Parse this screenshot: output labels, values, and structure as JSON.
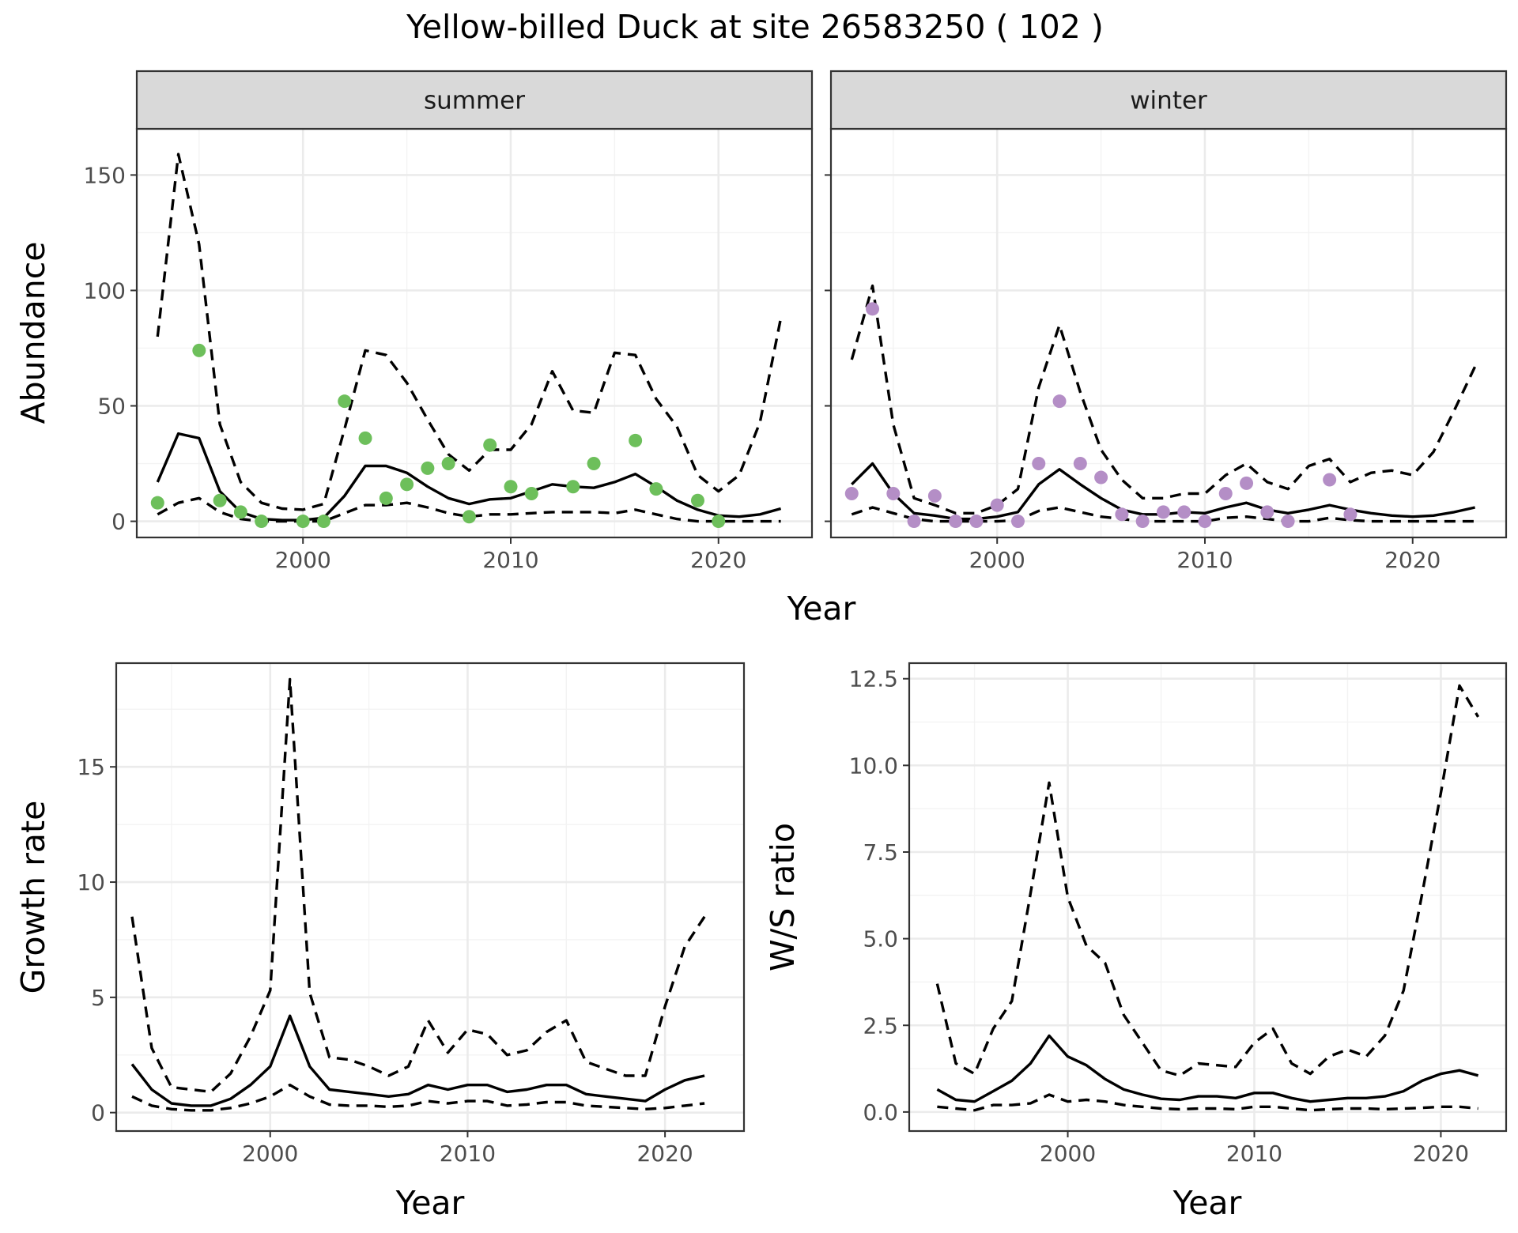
{
  "title": "Yellow-billed Duck at site 26583250 ( 102 )",
  "colors": {
    "summer_points": "#6dbf5b",
    "winter_points": "#b48ec6",
    "line": "#000000",
    "grid_major": "#ebebeb",
    "strip_fill": "#d9d9d9"
  },
  "chart_data": [
    {
      "type": "line",
      "panel": "summer",
      "strip_label": "summer",
      "xlabel": "Year",
      "ylabel": "Abundance",
      "xlim": [
        1992,
        2024.5
      ],
      "ylim": [
        -7,
        170
      ],
      "x_ticks": [
        2000,
        2010,
        2020
      ],
      "y_ticks": [
        0,
        50,
        100,
        150
      ],
      "grid": true,
      "series": [
        {
          "role": "mean",
          "style": "solid",
          "x": [
            1993,
            1994,
            1995,
            1996,
            1997,
            1998,
            1999,
            2000,
            2001,
            2002,
            2003,
            2004,
            2005,
            2006,
            2007,
            2008,
            2009,
            2010,
            2011,
            2012,
            2013,
            2014,
            2015,
            2016,
            2017,
            2018,
            2019,
            2020,
            2021,
            2022,
            2023
          ],
          "y": [
            17,
            38,
            36,
            13,
            4,
            1,
            0.5,
            0.5,
            1.5,
            11,
            24,
            24,
            21,
            15,
            10,
            7.5,
            9.5,
            10,
            13,
            16,
            15,
            14.5,
            17,
            20.5,
            15,
            9,
            5,
            2.5,
            2,
            3,
            5.5
          ]
        },
        {
          "role": "upper",
          "style": "dashed",
          "x": [
            1993,
            1994,
            1995,
            1996,
            1997,
            1998,
            1999,
            2000,
            2001,
            2002,
            2003,
            2004,
            2005,
            2006,
            2007,
            2008,
            2009,
            2010,
            2011,
            2012,
            2013,
            2014,
            2015,
            2016,
            2017,
            2018,
            2019,
            2020,
            2021,
            2022,
            2023
          ],
          "y": [
            80,
            159,
            120,
            42,
            17,
            8,
            5.5,
            5,
            7.5,
            40,
            74,
            72,
            60,
            44,
            29,
            22,
            31,
            31,
            42,
            65,
            48,
            47,
            73,
            72,
            53,
            41,
            20,
            13,
            20,
            43,
            88
          ]
        },
        {
          "role": "lower",
          "style": "dashed",
          "x": [
            1993,
            1994,
            1995,
            1996,
            1997,
            1998,
            1999,
            2000,
            2001,
            2002,
            2003,
            2004,
            2005,
            2006,
            2007,
            2008,
            2009,
            2010,
            2011,
            2012,
            2013,
            2014,
            2015,
            2016,
            2017,
            2018,
            2019,
            2020,
            2021,
            2022,
            2023
          ],
          "y": [
            3,
            8,
            10,
            4,
            1,
            0,
            0,
            0,
            0,
            3.5,
            7,
            7,
            8,
            6,
            3.5,
            2,
            3,
            3,
            3.5,
            4,
            4,
            4,
            3.5,
            5,
            3,
            1,
            0,
            0,
            0,
            0,
            0
          ]
        },
        {
          "role": "observed",
          "style": "points",
          "x": [
            1993,
            1995,
            1996,
            1997,
            1998,
            2000,
            2001,
            2002,
            2003,
            2004,
            2005,
            2006,
            2007,
            2008,
            2009,
            2010,
            2011,
            2013,
            2014,
            2016,
            2017,
            2019,
            2020
          ],
          "y": [
            8,
            74,
            9,
            4,
            0,
            0,
            0,
            52,
            36,
            10,
            16,
            23,
            25,
            2,
            33,
            15,
            12,
            15,
            25,
            35,
            14,
            9,
            0
          ]
        }
      ]
    },
    {
      "type": "line",
      "panel": "winter",
      "strip_label": "winter",
      "xlabel": "Year",
      "ylabel": "Abundance",
      "xlim": [
        1992,
        2024.5
      ],
      "ylim": [
        -7,
        170
      ],
      "x_ticks": [
        2000,
        2010,
        2020
      ],
      "y_ticks": [
        0,
        50,
        100,
        150
      ],
      "grid": true,
      "series": [
        {
          "role": "mean",
          "style": "solid",
          "x": [
            1993,
            1994,
            1995,
            1996,
            1997,
            1998,
            1999,
            2000,
            2001,
            2002,
            2003,
            2004,
            2005,
            2006,
            2007,
            2008,
            2009,
            2010,
            2011,
            2012,
            2013,
            2014,
            2015,
            2016,
            2017,
            2018,
            2019,
            2020,
            2021,
            2022,
            2023
          ],
          "y": [
            16,
            25,
            12,
            3.5,
            2.5,
            1,
            1,
            2,
            4,
            16,
            22.5,
            16,
            10,
            5,
            3,
            3,
            4,
            3.5,
            6,
            8,
            5,
            3.5,
            5,
            7,
            5,
            3.5,
            2.5,
            2,
            2.5,
            4,
            6
          ]
        },
        {
          "role": "upper",
          "style": "dashed",
          "x": [
            1993,
            1994,
            1995,
            1996,
            1997,
            1998,
            1999,
            2000,
            2001,
            2002,
            2003,
            2004,
            2005,
            2006,
            2007,
            2008,
            2009,
            2010,
            2011,
            2012,
            2013,
            2014,
            2015,
            2016,
            2017,
            2018,
            2019,
            2020,
            2021,
            2022,
            2023
          ],
          "y": [
            70,
            102,
            42,
            10,
            7,
            3.5,
            3.5,
            7,
            14,
            58,
            85,
            56,
            31,
            18,
            10,
            10,
            12,
            12,
            20,
            25,
            17,
            14,
            24,
            27,
            17,
            21,
            22,
            20,
            30,
            48,
            67
          ]
        },
        {
          "role": "lower",
          "style": "dashed",
          "x": [
            1993,
            1994,
            1995,
            1996,
            1997,
            1998,
            1999,
            2000,
            2001,
            2002,
            2003,
            2004,
            2005,
            2006,
            2007,
            2008,
            2009,
            2010,
            2011,
            2012,
            2013,
            2014,
            2015,
            2016,
            2017,
            2018,
            2019,
            2020,
            2021,
            2022,
            2023
          ],
          "y": [
            3,
            6,
            3.5,
            1,
            0,
            0,
            0,
            0,
            0.5,
            4.5,
            6,
            4,
            2,
            1,
            0,
            0,
            0,
            0,
            1.5,
            2,
            1,
            0,
            0,
            1.5,
            0.5,
            0,
            0,
            0,
            0,
            0,
            0
          ]
        },
        {
          "role": "observed",
          "style": "points",
          "x": [
            1993,
            1994,
            1995,
            1996,
            1997,
            1998,
            1999,
            2000,
            2001,
            2002,
            2003,
            2004,
            2005,
            2006,
            2007,
            2008,
            2009,
            2010,
            2011,
            2012,
            2013,
            2014,
            2016,
            2017
          ],
          "y": [
            12,
            92,
            12,
            0,
            11,
            0,
            0,
            7,
            0,
            25,
            52,
            25,
            19,
            3,
            0,
            4,
            4,
            0,
            12,
            16.5,
            4,
            0,
            18,
            3
          ]
        }
      ]
    },
    {
      "type": "line",
      "panel": "growth",
      "xlabel": "Year",
      "ylabel": "Growth rate",
      "xlim": [
        1992.2,
        2024
      ],
      "ylim": [
        -0.8,
        19.5
      ],
      "x_ticks": [
        2000,
        2010,
        2020
      ],
      "y_ticks": [
        0,
        5,
        10,
        15
      ],
      "grid": true,
      "series": [
        {
          "role": "mean",
          "style": "solid",
          "x": [
            1993,
            1994,
            1995,
            1996,
            1997,
            1998,
            1999,
            2000,
            2001,
            2002,
            2003,
            2004,
            2005,
            2006,
            2007,
            2008,
            2009,
            2010,
            2011,
            2012,
            2013,
            2014,
            2015,
            2016,
            2017,
            2018,
            2019,
            2020,
            2021,
            2022
          ],
          "y": [
            2.1,
            1,
            0.4,
            0.3,
            0.3,
            0.6,
            1.2,
            2,
            4.2,
            2,
            1,
            0.9,
            0.8,
            0.7,
            0.8,
            1.2,
            1,
            1.2,
            1.2,
            0.9,
            1,
            1.2,
            1.2,
            0.8,
            0.7,
            0.6,
            0.5,
            1,
            1.4,
            1.6
          ]
        },
        {
          "role": "upper",
          "style": "dashed",
          "x": [
            1993,
            1994,
            1995,
            1996,
            1997,
            1998,
            1999,
            2000,
            2001,
            2002,
            2003,
            2004,
            2005,
            2006,
            2007,
            2008,
            2009,
            2010,
            2011,
            2012,
            2013,
            2014,
            2015,
            2016,
            2017,
            2018,
            2019,
            2020,
            2021,
            2022
          ],
          "y": [
            8.5,
            2.8,
            1.1,
            1,
            0.9,
            1.7,
            3.3,
            5.3,
            18.8,
            5.2,
            2.4,
            2.3,
            2,
            1.6,
            2,
            4,
            2.6,
            3.6,
            3.4,
            2.5,
            2.7,
            3.5,
            4,
            2.2,
            1.9,
            1.6,
            1.6,
            4.6,
            7.2,
            8.5
          ]
        },
        {
          "role": "lower",
          "style": "dashed",
          "x": [
            1993,
            1994,
            1995,
            1996,
            1997,
            1998,
            1999,
            2000,
            2001,
            2002,
            2003,
            2004,
            2005,
            2006,
            2007,
            2008,
            2009,
            2010,
            2011,
            2012,
            2013,
            2014,
            2015,
            2016,
            2017,
            2018,
            2019,
            2020,
            2021,
            2022
          ],
          "y": [
            0.7,
            0.3,
            0.15,
            0.1,
            0.1,
            0.2,
            0.4,
            0.7,
            1.2,
            0.7,
            0.35,
            0.3,
            0.3,
            0.25,
            0.3,
            0.5,
            0.4,
            0.5,
            0.5,
            0.3,
            0.35,
            0.45,
            0.45,
            0.3,
            0.25,
            0.2,
            0.15,
            0.2,
            0.3,
            0.4
          ]
        }
      ]
    },
    {
      "type": "line",
      "panel": "ratio",
      "xlabel": "Year",
      "ylabel": "W/S ratio",
      "xlim": [
        1991.5,
        2023.5
      ],
      "ylim": [
        -0.55,
        12.95
      ],
      "x_ticks": [
        2000,
        2010,
        2020
      ],
      "y_ticks": [
        0.0,
        2.5,
        5.0,
        7.5,
        10.0,
        12.5
      ],
      "y_tick_labels": [
        "0.0",
        "2.5",
        "5.0",
        "7.5",
        "10.0",
        "12.5"
      ],
      "grid": true,
      "series": [
        {
          "role": "mean",
          "style": "solid",
          "x": [
            1993,
            1994,
            1995,
            1996,
            1997,
            1998,
            1999,
            2000,
            2001,
            2002,
            2003,
            2004,
            2005,
            2006,
            2007,
            2008,
            2009,
            2010,
            2011,
            2012,
            2013,
            2014,
            2015,
            2016,
            2017,
            2018,
            2019,
            2020,
            2021,
            2022
          ],
          "y": [
            0.65,
            0.35,
            0.3,
            0.6,
            0.9,
            1.4,
            2.2,
            1.6,
            1.35,
            0.95,
            0.65,
            0.5,
            0.38,
            0.35,
            0.45,
            0.45,
            0.4,
            0.55,
            0.55,
            0.4,
            0.3,
            0.35,
            0.4,
            0.4,
            0.45,
            0.6,
            0.9,
            1.1,
            1.2,
            1.05
          ]
        },
        {
          "role": "upper",
          "style": "dashed",
          "x": [
            1993,
            1994,
            1995,
            1996,
            1997,
            1998,
            1999,
            2000,
            2001,
            2002,
            2003,
            2004,
            2005,
            2006,
            2007,
            2008,
            2009,
            2010,
            2011,
            2012,
            2013,
            2014,
            2015,
            2016,
            2017,
            2018,
            2019,
            2020,
            2021,
            2022
          ],
          "y": [
            3.7,
            1.4,
            1.1,
            2.4,
            3.2,
            6.3,
            9.5,
            6.2,
            4.8,
            4.3,
            2.8,
            2,
            1.2,
            1.05,
            1.4,
            1.35,
            1.3,
            2,
            2.4,
            1.4,
            1.1,
            1.6,
            1.8,
            1.6,
            2.2,
            3.5,
            6.3,
            9.2,
            12.3,
            11.4
          ]
        },
        {
          "role": "lower",
          "style": "dashed",
          "x": [
            1993,
            1994,
            1995,
            1996,
            1997,
            1998,
            1999,
            2000,
            2001,
            2002,
            2003,
            2004,
            2005,
            2006,
            2007,
            2008,
            2009,
            2010,
            2011,
            2012,
            2013,
            2014,
            2015,
            2016,
            2017,
            2018,
            2019,
            2020,
            2021,
            2022
          ],
          "y": [
            0.15,
            0.1,
            0.05,
            0.2,
            0.2,
            0.25,
            0.5,
            0.3,
            0.35,
            0.3,
            0.2,
            0.15,
            0.1,
            0.08,
            0.1,
            0.1,
            0.08,
            0.15,
            0.15,
            0.1,
            0.05,
            0.08,
            0.1,
            0.1,
            0.08,
            0.1,
            0.12,
            0.15,
            0.15,
            0.1
          ]
        }
      ]
    }
  ]
}
